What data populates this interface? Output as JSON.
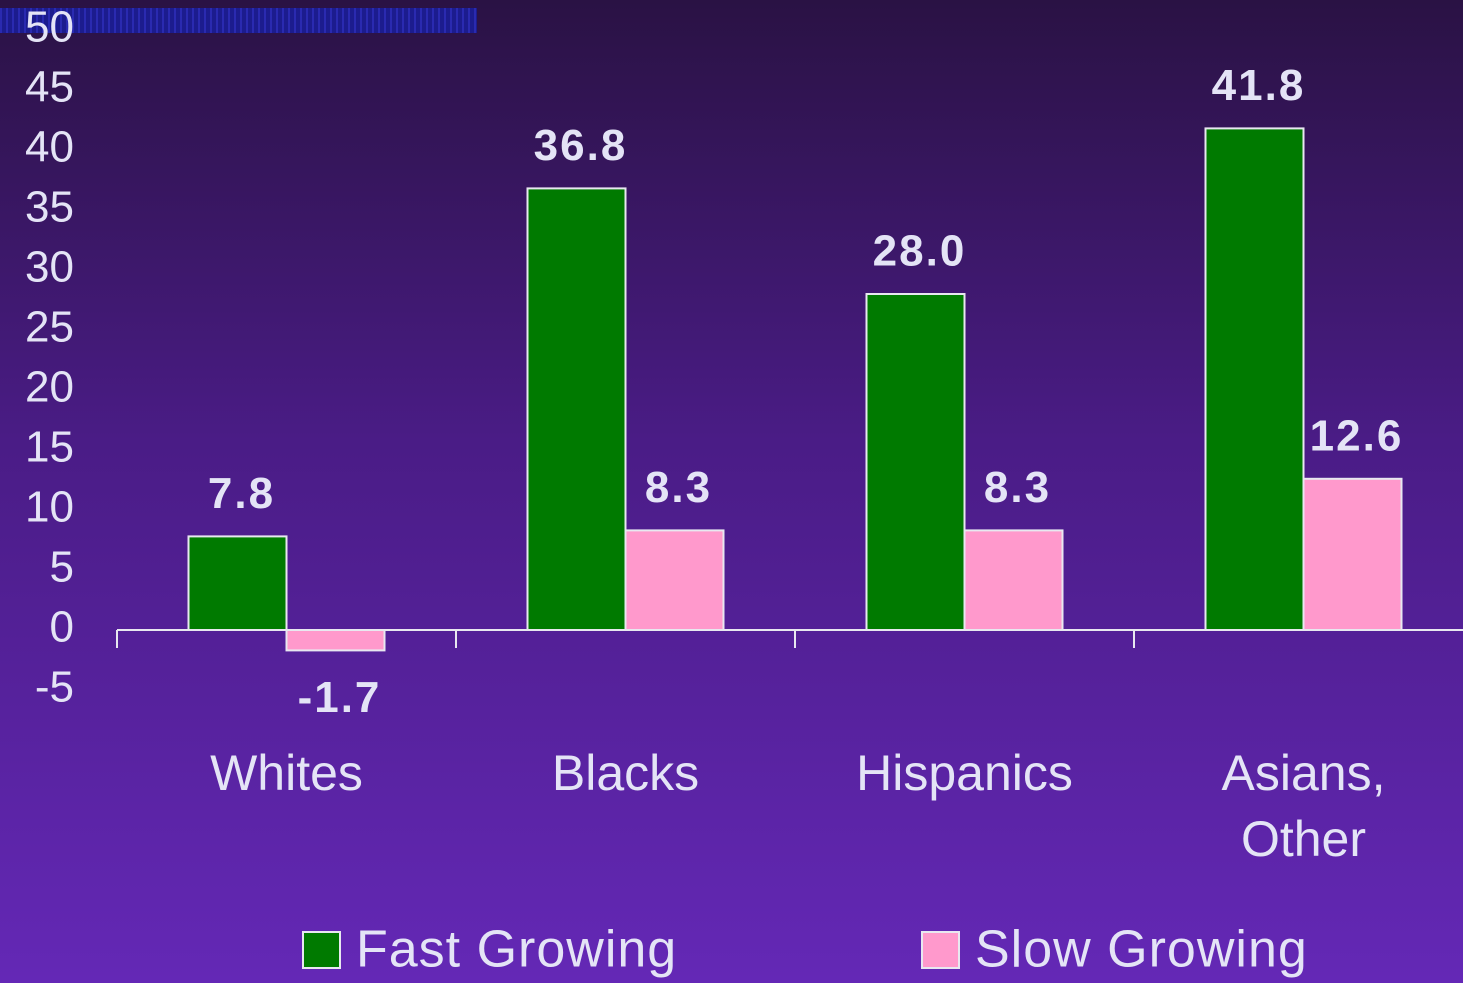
{
  "chart_data": {
    "type": "bar",
    "categories": [
      "Whites",
      "Blacks",
      "Hispanics",
      "Asians, Other"
    ],
    "series": [
      {
        "name": "Fast Growing",
        "color": "#007a00",
        "values": [
          7.8,
          36.8,
          28.0,
          41.8
        ],
        "value_labels": [
          "7.8",
          "36.8",
          "28.0",
          "41.8"
        ]
      },
      {
        "name": "Slow Growing",
        "color": "#ff99cc",
        "values": [
          -1.7,
          8.3,
          8.3,
          12.6
        ],
        "value_labels": [
          "-1.7",
          "8.3",
          "8.3",
          "12.6"
        ]
      }
    ],
    "ylim": [
      -5,
      50
    ],
    "yticks": [
      -5,
      0,
      5,
      10,
      15,
      20,
      25,
      30,
      35,
      40,
      45,
      50
    ]
  }
}
